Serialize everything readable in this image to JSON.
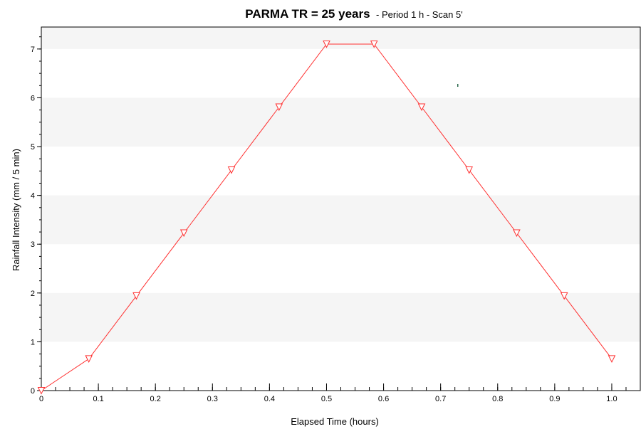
{
  "chart_data": {
    "type": "line",
    "title": "PARMA TR = 25 years",
    "subtitle": "- Period 1 h - Scan 5'",
    "xlabel": "Elapsed Time (hours)",
    "ylabel": "Rainfall Intensity (mm / 5 min)",
    "xlim": [
      0,
      1.05
    ],
    "ylim": [
      0,
      7.45
    ],
    "xticks": [
      0,
      0.1,
      0.2,
      0.3,
      0.4,
      0.5,
      0.6,
      0.7,
      0.8,
      0.9,
      1.0
    ],
    "xtick_labels": [
      "0",
      "0.1",
      "0.2",
      "0.3",
      "0.4",
      "0.5",
      "0.6",
      "0.7",
      "0.8",
      "0.9",
      "1.0"
    ],
    "yticks": [
      0,
      1,
      2,
      3,
      4,
      5,
      6,
      7
    ],
    "ytick_labels": [
      "0",
      "1",
      "2",
      "3",
      "4",
      "5",
      "6",
      "7"
    ],
    "grid": "alternating horizontal bands",
    "series": [
      {
        "color": "#ff3030",
        "marker": "triangle-down",
        "x": [
          0,
          0.0833,
          0.1667,
          0.25,
          0.3333,
          0.4167,
          0.5,
          0.5833,
          0.6667,
          0.75,
          0.8333,
          0.9167,
          1.0
        ],
        "y": [
          0,
          0.65,
          1.94,
          3.23,
          4.52,
          5.81,
          7.1,
          7.1,
          5.81,
          4.52,
          3.23,
          1.94,
          0.65
        ]
      }
    ],
    "band_color": "#f5f5f5"
  }
}
